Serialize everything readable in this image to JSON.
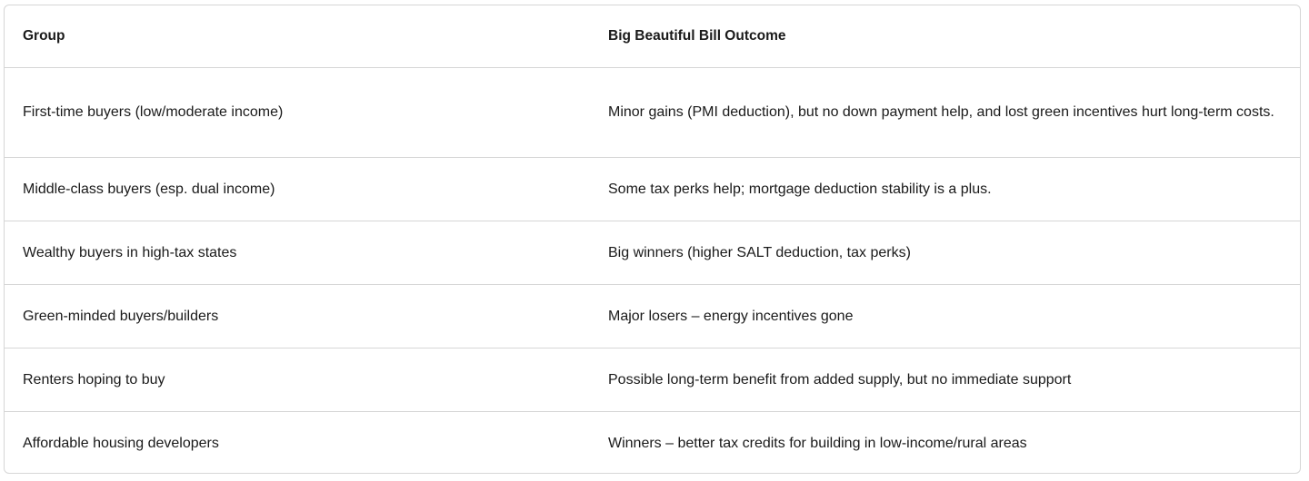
{
  "table": {
    "headers": [
      "Group",
      "Big Beautiful Bill Outcome"
    ],
    "rows": [
      {
        "group": "First-time buyers (low/moderate income)",
        "outcome": "Minor gains (PMI deduction), but no down payment help, and lost green incentives hurt long-term costs."
      },
      {
        "group": "Middle-class buyers (esp. dual income)",
        "outcome": "Some tax perks help; mortgage deduction stability is a plus."
      },
      {
        "group": "Wealthy buyers in high-tax states",
        "outcome": "Big winners (higher SALT deduction, tax perks)"
      },
      {
        "group": "Green-minded buyers/builders",
        "outcome": "Major losers – energy incentives gone"
      },
      {
        "group": "Renters hoping to buy",
        "outcome": "Possible long-term benefit from added supply, but no immediate support"
      },
      {
        "group": "Affordable housing developers",
        "outcome": "Winners – better tax credits for building in low-income/rural areas"
      }
    ]
  }
}
